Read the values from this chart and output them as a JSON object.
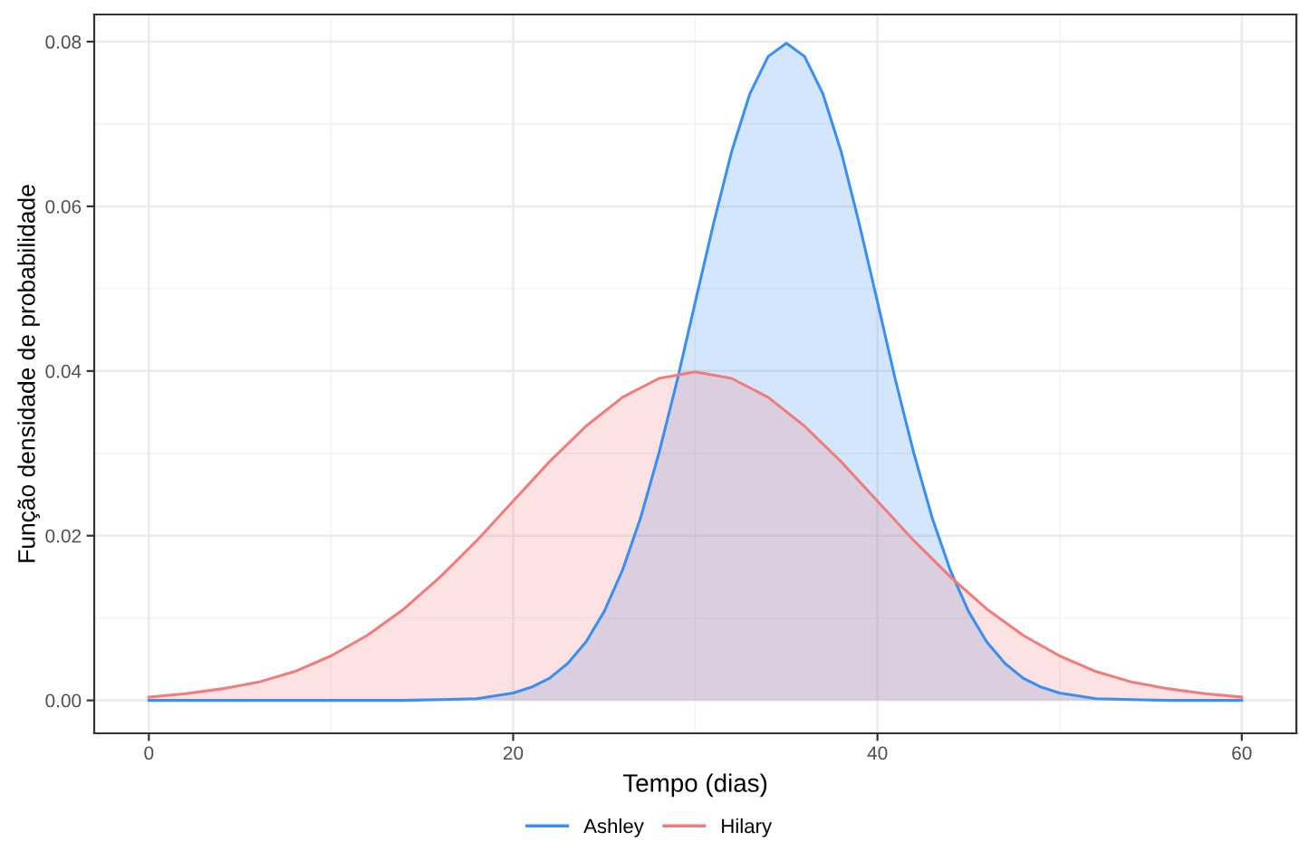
{
  "chart_data": {
    "type": "area",
    "xlabel": "Tempo (dias)",
    "ylabel": "Função densidade de probabilidade",
    "xlim": [
      -3,
      63
    ],
    "ylim": [
      -0.004,
      0.0833
    ],
    "xticks": [
      0,
      20,
      40,
      60
    ],
    "yticks": [
      {
        "value": 0,
        "label": "0.00"
      },
      {
        "value": 0.02,
        "label": "0.02"
      },
      {
        "value": 0.04,
        "label": "0.04"
      },
      {
        "value": 0.06,
        "label": "0.06"
      },
      {
        "value": 0.08,
        "label": "0.08"
      }
    ],
    "grid": true,
    "legend": "bottom",
    "marker": "none",
    "line_style": "solid",
    "series": [
      {
        "name": "Ashley",
        "color": "#3a8ff0",
        "x": [
          0,
          4,
          8,
          12,
          14,
          16,
          18,
          20,
          21,
          22,
          23,
          24,
          25,
          26,
          27,
          28,
          29,
          30,
          31,
          32,
          33,
          34,
          35,
          36,
          37,
          38,
          39,
          40,
          41,
          42,
          43,
          44,
          45,
          46,
          47,
          48,
          49,
          50,
          52,
          54,
          56,
          58,
          60
        ],
        "values": [
          0,
          0,
          0,
          0,
          0,
          0.0001,
          0.0002,
          0.0009,
          0.0016,
          0.0027,
          0.0045,
          0.0071,
          0.0108,
          0.0158,
          0.0222,
          0.03,
          0.0388,
          0.0484,
          0.0579,
          0.0667,
          0.0737,
          0.0782,
          0.0798,
          0.0782,
          0.0737,
          0.0667,
          0.0579,
          0.0484,
          0.0388,
          0.03,
          0.0222,
          0.0158,
          0.0108,
          0.0071,
          0.0045,
          0.0027,
          0.0016,
          0.0009,
          0.0002,
          0.0001,
          0,
          0,
          0
        ]
      },
      {
        "name": "Hilary",
        "color": "#f07c7c",
        "x": [
          0,
          2,
          4,
          6,
          8,
          10,
          12,
          14,
          16,
          18,
          20,
          22,
          24,
          26,
          28,
          30,
          32,
          34,
          36,
          38,
          40,
          42,
          44,
          46,
          48,
          50,
          52,
          54,
          56,
          58,
          60
        ],
        "values": [
          0.0004,
          0.0008,
          0.0014,
          0.0022,
          0.0035,
          0.0054,
          0.0079,
          0.0111,
          0.015,
          0.0194,
          0.0242,
          0.029,
          0.0333,
          0.0368,
          0.0391,
          0.0399,
          0.0391,
          0.0368,
          0.0333,
          0.029,
          0.0242,
          0.0194,
          0.015,
          0.0111,
          0.0079,
          0.0054,
          0.0035,
          0.0022,
          0.0014,
          0.0008,
          0.0004
        ]
      }
    ]
  }
}
